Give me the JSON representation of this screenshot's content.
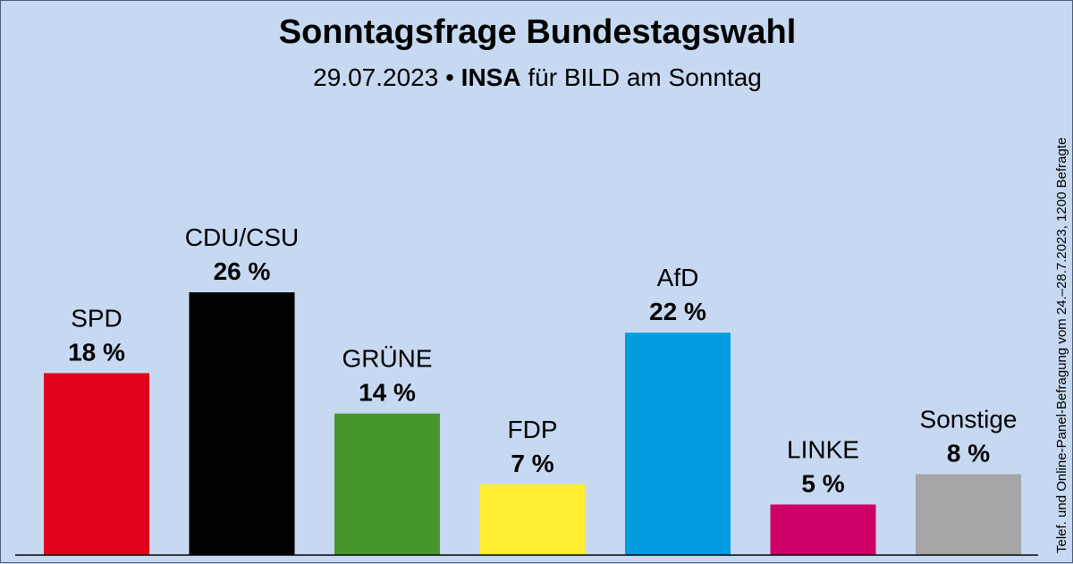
{
  "chart_data": {
    "type": "bar",
    "title": "Sonntagsfrage Bundestagswahl",
    "subtitle": {
      "date": "29.07.2023",
      "separator": "•",
      "institute": "INSA",
      "client": "für BILD am Sonntag"
    },
    "source_note": "Telef. und Online-Panel-Befragung vom 24.–28.7.2023, 1200 Befragte",
    "unit": "%",
    "categories": [
      "SPD",
      "CDU/CSU",
      "GRÜNE",
      "FDP",
      "AfD",
      "LINKE",
      "Sonstige"
    ],
    "values": [
      18,
      26,
      14,
      7,
      22,
      5,
      8
    ],
    "value_labels": [
      "18 %",
      "26 %",
      "14 %",
      "7 %",
      "22 %",
      "5 %",
      "8 %"
    ],
    "colors": [
      "#e3001b",
      "#000000",
      "#46962b",
      "#feed30",
      "#009ee0",
      "#cc0066",
      "#a6a6a6"
    ],
    "ylim": [
      0,
      26
    ],
    "xlabel": "",
    "ylabel": ""
  }
}
